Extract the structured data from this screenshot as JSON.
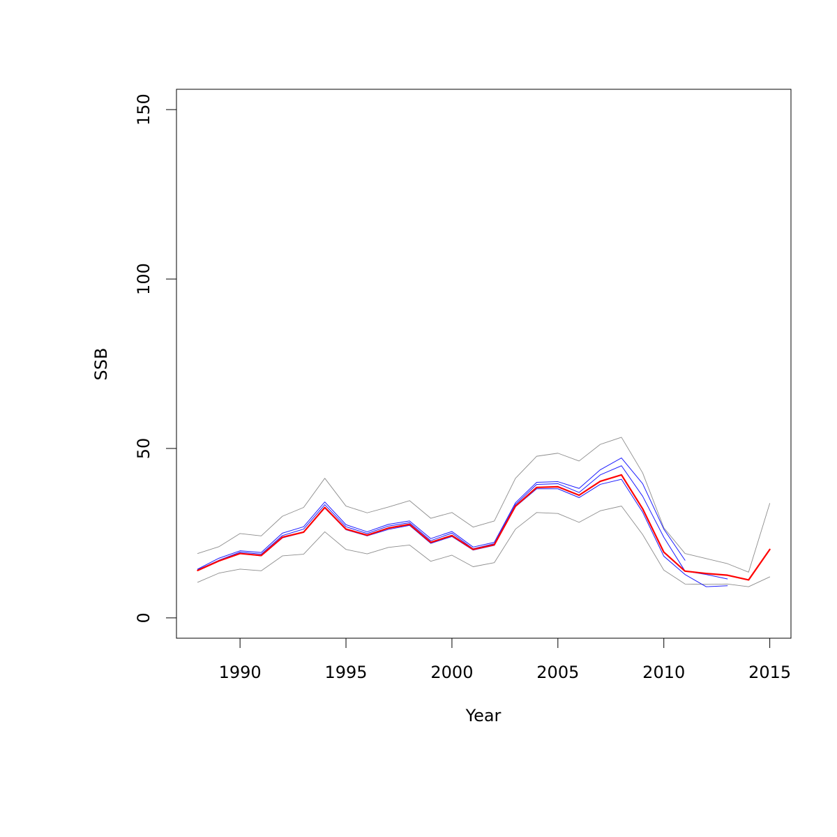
{
  "chart_data": {
    "type": "line",
    "title": "",
    "xlabel": "Year",
    "ylabel": "SSB",
    "xlim": [
      1987,
      2016
    ],
    "ylim": [
      -6,
      156
    ],
    "x_ticks": [
      1990,
      1995,
      2000,
      2005,
      2010,
      2015
    ],
    "y_ticks": [
      0,
      50,
      100,
      150
    ],
    "grid": false,
    "legend": "none",
    "colors": {
      "bounds": "#8c8c8c",
      "retro": "#1a1aff",
      "estimate": "#ff0000",
      "frame": "#000000"
    },
    "series": [
      {
        "role": "upper",
        "color": "#8c8c8c",
        "x": [
          1988,
          1989,
          1990,
          1991,
          1992,
          1993,
          1994,
          1995,
          1996,
          1997,
          1998,
          1999,
          2000,
          2001,
          2002,
          2003,
          2004,
          2005,
          2006,
          2007,
          2008,
          2009,
          2010,
          2011,
          2012,
          2013,
          2014,
          2015
        ],
        "values": [
          19,
          21,
          24.9,
          24.2,
          30,
          32.6,
          41.2,
          33,
          31,
          32.7,
          34.6,
          29.4,
          31.1,
          26.8,
          28.6,
          41.2,
          47.7,
          48.6,
          46.3,
          51.2,
          53.3,
          42.8,
          26.6,
          19,
          17.5,
          16,
          13.5,
          33.8
        ]
      },
      {
        "role": "lower",
        "color": "#8c8c8c",
        "x": [
          1988,
          1989,
          1990,
          1991,
          1992,
          1993,
          1994,
          1995,
          1996,
          1997,
          1998,
          1999,
          2000,
          2001,
          2002,
          2003,
          2004,
          2005,
          2006,
          2007,
          2008,
          2009,
          2010,
          2011,
          2012,
          2013,
          2014,
          2015
        ],
        "values": [
          10.5,
          13.2,
          14.4,
          13.9,
          18.3,
          18.8,
          25.4,
          20.2,
          18.9,
          20.8,
          21.5,
          16.7,
          18.5,
          15.1,
          16.3,
          26.2,
          31.1,
          30.8,
          28.2,
          31.6,
          33,
          24.6,
          14.1,
          10,
          9.9,
          10,
          9.2,
          12.1
        ]
      },
      {
        "role": "retro",
        "color": "#1a1aff",
        "x": [
          1988,
          1989,
          1990,
          1991,
          1992,
          1993,
          1994,
          1995,
          1996,
          1997,
          1998,
          1999,
          2000,
          2001,
          2002,
          2003,
          2004,
          2005,
          2006,
          2007,
          2008,
          2009,
          2010,
          2011
        ],
        "values": [
          14.4,
          17.6,
          19.8,
          19.3,
          25,
          26.9,
          34.2,
          27.5,
          25.4,
          27.6,
          28.6,
          23.4,
          25.5,
          20.9,
          22.3,
          34,
          40,
          40.2,
          38.2,
          43.7,
          47.2,
          39.6,
          26.2,
          17
        ]
      },
      {
        "role": "retro",
        "color": "#1a1aff",
        "x": [
          1988,
          1989,
          1990,
          1991,
          1992,
          1993,
          1994,
          1995,
          1996,
          1997,
          1998,
          1999,
          2000,
          2001,
          2002,
          2003,
          2004,
          2005,
          2006,
          2007,
          2008,
          2009,
          2010,
          2011,
          2012,
          2013
        ],
        "values": [
          14.2,
          17,
          19.4,
          18.8,
          24.3,
          26.2,
          33.4,
          26.9,
          24.9,
          27.1,
          28.1,
          22.8,
          25,
          20.4,
          21.9,
          33.5,
          39.4,
          39.6,
          37,
          42.2,
          44.9,
          35.9,
          23.8,
          13.8,
          12.8,
          11.5
        ]
      },
      {
        "role": "retro",
        "color": "#1a1aff",
        "x": [
          1988,
          1989,
          1990,
          1991,
          1992,
          1993,
          1994,
          1995,
          1996,
          1997,
          1998,
          1999,
          2000,
          2001,
          2002,
          2003,
          2004,
          2005,
          2006,
          2007,
          2008,
          2009,
          2010,
          2011,
          2012,
          2013
        ],
        "values": [
          14,
          16.8,
          19,
          18.3,
          23.6,
          25.2,
          32.4,
          26,
          24.2,
          26.1,
          27.3,
          22,
          24,
          20,
          21.4,
          32.8,
          38.1,
          38.1,
          35.5,
          39.4,
          40.9,
          31.2,
          18.2,
          12.8,
          9.2,
          9.5
        ]
      },
      {
        "role": "estimate",
        "color": "#ff0000",
        "x": [
          1988,
          1989,
          1990,
          1991,
          1992,
          1993,
          1994,
          1995,
          1996,
          1997,
          1998,
          1999,
          2000,
          2001,
          2002,
          2003,
          2004,
          2005,
          2006,
          2007,
          2008,
          2009,
          2010,
          2011,
          2012,
          2013,
          2014,
          2015
        ],
        "values": [
          14,
          16.8,
          19,
          18.4,
          23.8,
          25.3,
          32.6,
          26.2,
          24.4,
          26.5,
          27.6,
          22.3,
          24.3,
          20.2,
          21.6,
          33,
          38.5,
          38.7,
          36.2,
          40.3,
          42.2,
          32.2,
          19.4,
          13.8,
          13.1,
          12.6,
          11.2,
          20.2
        ]
      }
    ]
  }
}
